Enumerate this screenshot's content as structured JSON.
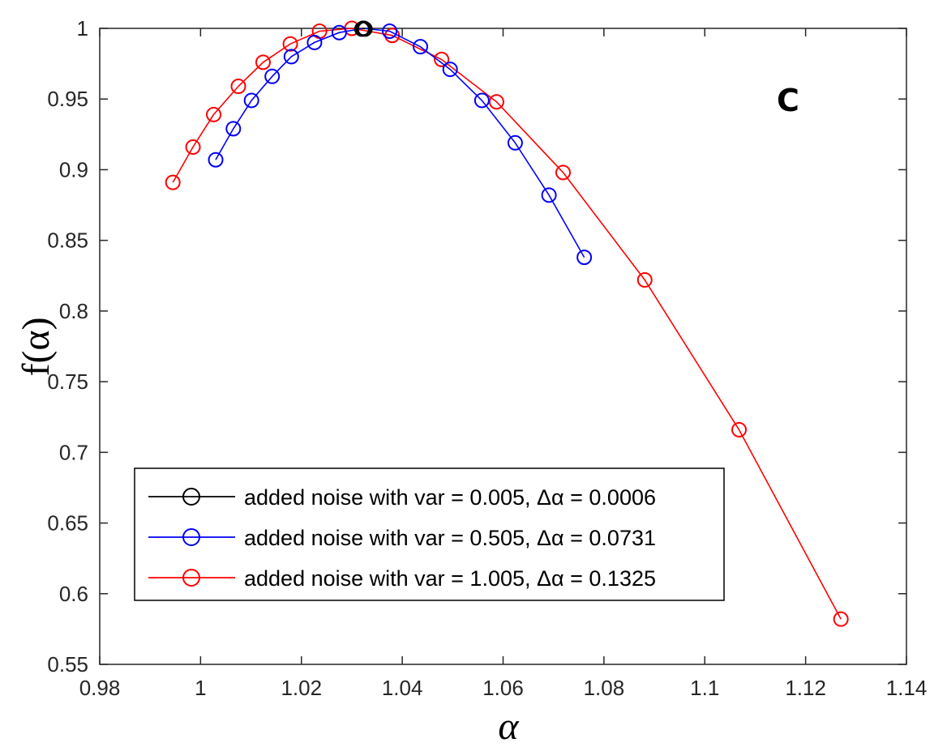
{
  "chart_data": {
    "type": "line",
    "panel_label": "C",
    "xlabel": "α",
    "ylabel": "f(α)",
    "xlim": [
      0.98,
      1.14
    ],
    "ylim": [
      0.55,
      1.0
    ],
    "xticks": [
      0.98,
      1,
      1.02,
      1.04,
      1.06,
      1.08,
      1.1,
      1.12,
      1.14
    ],
    "xtick_labels": [
      "0.98",
      "1",
      "1.02",
      "1.04",
      "1.06",
      "1.08",
      "1.1",
      "1.12",
      "1.14"
    ],
    "yticks": [
      0.55,
      0.6,
      0.65,
      0.7,
      0.75,
      0.8,
      0.85,
      0.9,
      0.95,
      1.0
    ],
    "ytick_labels": [
      "0.55",
      "0.6",
      "0.65",
      "0.7",
      "0.75",
      "0.8",
      "0.85",
      "0.9",
      "0.95",
      "1"
    ],
    "legend_position": "bottom-left",
    "series": [
      {
        "name": "added noise with var = 0.005, Δα = 0.0006",
        "color": "#000000",
        "x": [
          1.032,
          1.0322,
          1.0324,
          1.0326
        ],
        "y": [
          0.9995,
          1.0,
          1.0,
          0.9995
        ]
      },
      {
        "name": "added noise with var = 0.505, Δα = 0.0731",
        "color": "#0000ff",
        "x": [
          1.003,
          1.0065,
          1.0101,
          1.0142,
          1.018,
          1.0226,
          1.0275,
          1.0323,
          1.0375,
          1.0436,
          1.0495,
          1.0558,
          1.0624,
          1.0691,
          1.0761
        ],
        "y": [
          0.907,
          0.929,
          0.949,
          0.966,
          0.98,
          0.99,
          0.997,
          1.0,
          0.998,
          0.987,
          0.971,
          0.949,
          0.919,
          0.882,
          0.838
        ]
      },
      {
        "name": "added noise with var = 1.005, Δα = 0.1325",
        "color": "#ff0000",
        "x": [
          0.9945,
          0.9985,
          1.0026,
          1.0075,
          1.0124,
          1.0178,
          1.0236,
          1.03,
          1.038,
          1.0478,
          1.0587,
          1.0719,
          1.0881,
          1.1068,
          1.127
        ],
        "y": [
          0.891,
          0.916,
          0.939,
          0.959,
          0.976,
          0.989,
          0.998,
          1.0,
          0.995,
          0.978,
          0.948,
          0.898,
          0.822,
          0.716,
          0.582
        ]
      }
    ]
  }
}
